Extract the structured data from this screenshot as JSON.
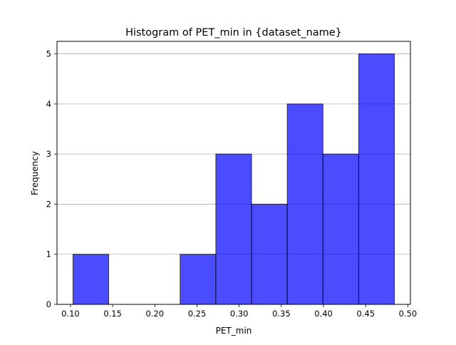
{
  "chart_data": {
    "type": "histogram",
    "title": "Histogram of PET_min in {dataset_name}",
    "xlabel": "PET_min",
    "ylabel": "Frequency",
    "xlim": [
      0.084,
      0.503
    ],
    "ylim": [
      0,
      5.25
    ],
    "xticks": [
      0.1,
      0.15,
      0.2,
      0.25,
      0.3,
      0.35,
      0.4,
      0.45,
      0.5
    ],
    "xtick_labels": [
      "0.10",
      "0.15",
      "0.20",
      "0.25",
      "0.30",
      "0.35",
      "0.40",
      "0.45",
      "0.50"
    ],
    "yticks": [
      0,
      1,
      2,
      3,
      4,
      5
    ],
    "ytick_labels": [
      "0",
      "1",
      "2",
      "3",
      "4",
      "5"
    ],
    "bin_edges": [
      0.103,
      0.1453,
      0.1877,
      0.23,
      0.2723,
      0.3147,
      0.357,
      0.3993,
      0.4417,
      0.484
    ],
    "counts": [
      1,
      0,
      0,
      1,
      3,
      2,
      4,
      3,
      5
    ],
    "grid": "y",
    "colors": {
      "bar": "#0000ff",
      "bar_opacity": 0.7,
      "edge": "#000000",
      "grid": "#b0b0b0"
    }
  }
}
